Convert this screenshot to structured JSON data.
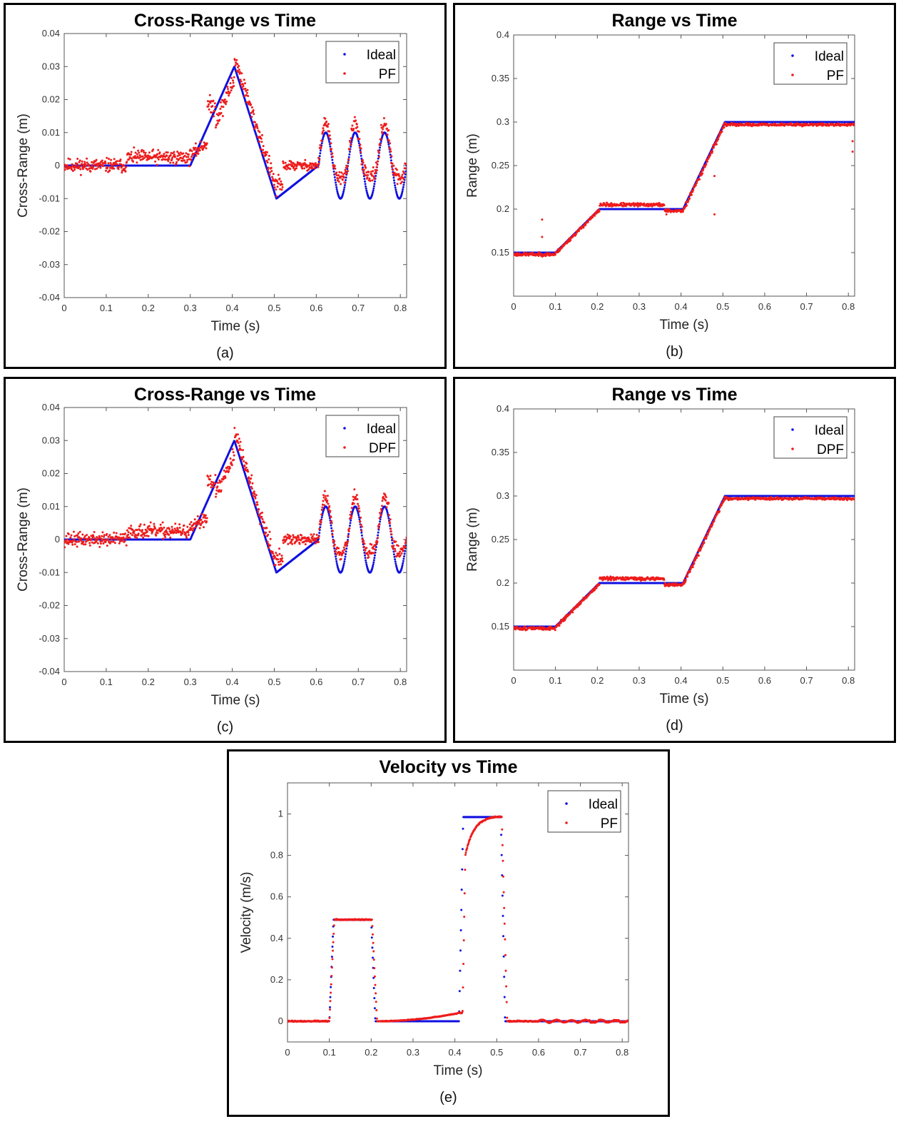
{
  "colors": {
    "ideal": "#1010e0",
    "estimate": "#ee1c1c",
    "frame": "#000000",
    "axis": "#555555"
  },
  "chart_data": [
    {
      "id": "a",
      "type": "scatter",
      "caption": "(a)",
      "title": "Cross-Range vs Time",
      "xlabel": "Time (s)",
      "ylabel": "Cross-Range (m)",
      "xlim": [
        0,
        0.815
      ],
      "ylim": [
        -0.04,
        0.04
      ],
      "xticks": [
        0,
        0.1,
        0.2,
        0.3,
        0.4,
        0.5,
        0.6,
        0.7,
        0.8
      ],
      "yticks": [
        -0.04,
        -0.03,
        -0.02,
        -0.01,
        0,
        0.01,
        0.02,
        0.03,
        0.04
      ],
      "legend_position": "top-right",
      "series": [
        {
          "name": "Ideal",
          "description": "0 until 0.3 s, linear rise to 0.03 at 0.4 s, linear fall to -0.01 at 0.5 s, linear rise to 0 at 0.6 s, then sinusoid amplitude 0.01 with period ~0.07 s",
          "key_points": [
            [
              0,
              0
            ],
            [
              0.3,
              0
            ],
            [
              0.4,
              0.03
            ],
            [
              0.5,
              -0.01
            ],
            [
              0.6,
              0
            ],
            [
              0.625,
              0.01
            ],
            [
              0.66,
              -0.01
            ],
            [
              0.695,
              0.01
            ],
            [
              0.73,
              -0.01
            ],
            [
              0.765,
              0.01
            ],
            [
              0.8,
              -0.01
            ]
          ]
        },
        {
          "name": "PF",
          "description": "noisy estimate following the ideal trajectory with positive bias near 0.003 before 0.3 s and exceeding peaks (~0.017) during oscillation",
          "key_points": [
            [
              0,
              0.001
            ],
            [
              0.1,
              -0.001
            ],
            [
              0.2,
              0.002
            ],
            [
              0.29,
              0.003
            ],
            [
              0.36,
              0.02
            ],
            [
              0.4,
              0.025
            ],
            [
              0.45,
              0.012
            ],
            [
              0.5,
              -0.011
            ],
            [
              0.53,
              0
            ],
            [
              0.6,
              0
            ],
            [
              0.625,
              0.016
            ],
            [
              0.66,
              -0.003
            ],
            [
              0.695,
              0.014
            ],
            [
              0.73,
              -0.004
            ],
            [
              0.765,
              0.014
            ],
            [
              0.8,
              0
            ]
          ]
        }
      ]
    },
    {
      "id": "b",
      "type": "scatter",
      "caption": "(b)",
      "title": "Range vs Time",
      "xlabel": "Time (s)",
      "ylabel": "Range (m)",
      "xlim": [
        0,
        0.815
      ],
      "ylim": [
        0.1,
        0.4
      ],
      "xticks": [
        0,
        0.1,
        0.2,
        0.3,
        0.4,
        0.5,
        0.6,
        0.7,
        0.8
      ],
      "yticks": [
        0.15,
        0.2,
        0.25,
        0.3,
        0.35,
        0.4
      ],
      "legend_position": "top-right",
      "series": [
        {
          "name": "Ideal",
          "description": "0.15 until 0.1 s, ramps to 0.2 at 0.2 s, flat until 0.4 s, ramps to 0.3 at 0.5 s, flat after",
          "key_points": [
            [
              0,
              0.15
            ],
            [
              0.1,
              0.15
            ],
            [
              0.2,
              0.2
            ],
            [
              0.4,
              0.2
            ],
            [
              0.5,
              0.3
            ],
            [
              0.815,
              0.3
            ]
          ]
        },
        {
          "name": "PF",
          "description": "estimate tracking the ideal range with small bias (+0.005 on the 0.2 plateau, -0.003 on the 0.3 plateau) and a few outliers",
          "key_points": [
            [
              0,
              0.148
            ],
            [
              0.1,
              0.148
            ],
            [
              0.2,
              0.205
            ],
            [
              0.37,
              0.205
            ],
            [
              0.4,
              0.198
            ],
            [
              0.5,
              0.297
            ],
            [
              0.815,
              0.297
            ]
          ]
        }
      ]
    },
    {
      "id": "c",
      "type": "scatter",
      "caption": "(c)",
      "title": "Cross-Range vs Time",
      "xlabel": "Time (s)",
      "ylabel": "Cross-Range (m)",
      "xlim": [
        0,
        0.815
      ],
      "ylim": [
        -0.04,
        0.04
      ],
      "xticks": [
        0,
        0.1,
        0.2,
        0.3,
        0.4,
        0.5,
        0.6,
        0.7,
        0.8
      ],
      "yticks": [
        -0.04,
        -0.03,
        -0.02,
        -0.01,
        0,
        0.01,
        0.02,
        0.03,
        0.04
      ],
      "legend_position": "top-right",
      "series": [
        {
          "name": "Ideal",
          "description": "same ideal trajectory as panel (a)",
          "key_points": [
            [
              0,
              0
            ],
            [
              0.3,
              0
            ],
            [
              0.4,
              0.03
            ],
            [
              0.5,
              -0.01
            ],
            [
              0.6,
              0
            ],
            [
              0.625,
              0.01
            ],
            [
              0.66,
              -0.01
            ],
            [
              0.695,
              0.01
            ],
            [
              0.73,
              -0.01
            ],
            [
              0.765,
              0.01
            ],
            [
              0.8,
              -0.01
            ]
          ]
        },
        {
          "name": "DPF",
          "description": "noisy estimate very similar to PF, tracking the ideal trajectory",
          "key_points": [
            [
              0,
              0.001
            ],
            [
              0.1,
              -0.001
            ],
            [
              0.2,
              0.002
            ],
            [
              0.29,
              0.003
            ],
            [
              0.36,
              0.02
            ],
            [
              0.4,
              0.025
            ],
            [
              0.45,
              0.012
            ],
            [
              0.5,
              -0.011
            ],
            [
              0.53,
              0
            ],
            [
              0.6,
              0
            ],
            [
              0.625,
              0.017
            ],
            [
              0.66,
              -0.003
            ],
            [
              0.695,
              0.014
            ],
            [
              0.73,
              -0.004
            ],
            [
              0.765,
              0.014
            ],
            [
              0.8,
              0
            ]
          ]
        }
      ]
    },
    {
      "id": "d",
      "type": "scatter",
      "caption": "(d)",
      "title": "Range vs Time",
      "xlabel": "Time (s)",
      "ylabel": "Range (m)",
      "xlim": [
        0,
        0.815
      ],
      "ylim": [
        0.1,
        0.4
      ],
      "xticks": [
        0,
        0.1,
        0.2,
        0.3,
        0.4,
        0.5,
        0.6,
        0.7,
        0.8
      ],
      "yticks": [
        0.15,
        0.2,
        0.25,
        0.3,
        0.35,
        0.4
      ],
      "legend_position": "top-right",
      "series": [
        {
          "name": "Ideal",
          "description": "same ideal range profile as panel (b)",
          "key_points": [
            [
              0,
              0.15
            ],
            [
              0.1,
              0.15
            ],
            [
              0.2,
              0.2
            ],
            [
              0.4,
              0.2
            ],
            [
              0.5,
              0.3
            ],
            [
              0.815,
              0.3
            ]
          ]
        },
        {
          "name": "DPF",
          "description": "estimate tracking the ideal range closely without outliers",
          "key_points": [
            [
              0,
              0.148
            ],
            [
              0.1,
              0.148
            ],
            [
              0.2,
              0.205
            ],
            [
              0.37,
              0.205
            ],
            [
              0.4,
              0.198
            ],
            [
              0.5,
              0.297
            ],
            [
              0.815,
              0.297
            ]
          ]
        }
      ]
    },
    {
      "id": "e",
      "type": "scatter",
      "caption": "(e)",
      "title": "Velocity vs Time",
      "xlabel": "Time (s)",
      "ylabel": "Velocity (m/s)",
      "xlim": [
        0,
        0.815
      ],
      "ylim": [
        -0.1,
        1.15
      ],
      "xticks": [
        0,
        0.1,
        0.2,
        0.3,
        0.4,
        0.5,
        0.6,
        0.7,
        0.8
      ],
      "yticks": [
        0,
        0.2,
        0.4,
        0.6,
        0.8,
        1
      ],
      "legend_position": "top-right",
      "series": [
        {
          "name": "Ideal",
          "description": "0 until 0.1 s, 0.5 between 0.11 and 0.2 s, 0 until 0.41 s, 1.0 between 0.42 and 0.51 s, then 0",
          "key_points": [
            [
              0,
              0
            ],
            [
              0.1,
              0
            ],
            [
              0.11,
              0.49
            ],
            [
              0.2,
              0.49
            ],
            [
              0.21,
              0
            ],
            [
              0.41,
              0
            ],
            [
              0.42,
              0.985
            ],
            [
              0.51,
              0.985
            ],
            [
              0.52,
              0
            ],
            [
              0.815,
              0
            ]
          ]
        },
        {
          "name": "PF",
          "description": "velocity estimate: flat 0.49 on the first plateau, slow rise from 0 to 0.04 before 0.41 s, asymptotic rise from 0.8 to 0.99 on the second plateau, small oscillations after 0.6 s",
          "key_points": [
            [
              0,
              0
            ],
            [
              0.1,
              0
            ],
            [
              0.11,
              0.49
            ],
            [
              0.2,
              0.49
            ],
            [
              0.22,
              0
            ],
            [
              0.3,
              0.002
            ],
            [
              0.41,
              0.04
            ],
            [
              0.425,
              0.8
            ],
            [
              0.45,
              0.92
            ],
            [
              0.51,
              0.99
            ],
            [
              0.525,
              0
            ],
            [
              0.815,
              0
            ]
          ]
        }
      ]
    }
  ]
}
